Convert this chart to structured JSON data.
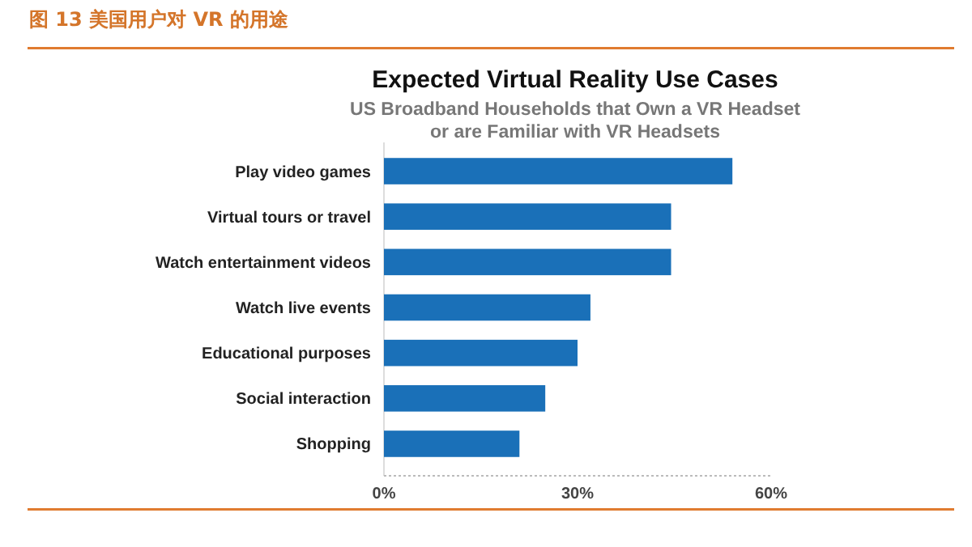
{
  "chart_data": {
    "type": "bar",
    "orientation": "horizontal",
    "title": "Expected Virtual Reality Use Cases",
    "subtitle": "US Broadband Households that Own a VR Headset\nor are Familiar with VR Headsets",
    "annotations": [
      "图 13 美国用户对 VR 的用途"
    ],
    "categories": [
      "Play video games",
      "Virtual tours or travel",
      "Watch entertainment videos",
      "Watch live events",
      "Educational purposes",
      "Social interaction",
      "Shopping"
    ],
    "values": [
      54,
      44.5,
      44.5,
      32,
      30,
      25,
      21
    ],
    "color": "#1a70b8",
    "xlim": [
      0,
      60
    ],
    "xticks": [
      {
        "value": 0,
        "label": "0%"
      },
      {
        "value": 30,
        "label": "30%"
      },
      {
        "value": 60,
        "label": "60%"
      }
    ],
    "grid": false
  }
}
